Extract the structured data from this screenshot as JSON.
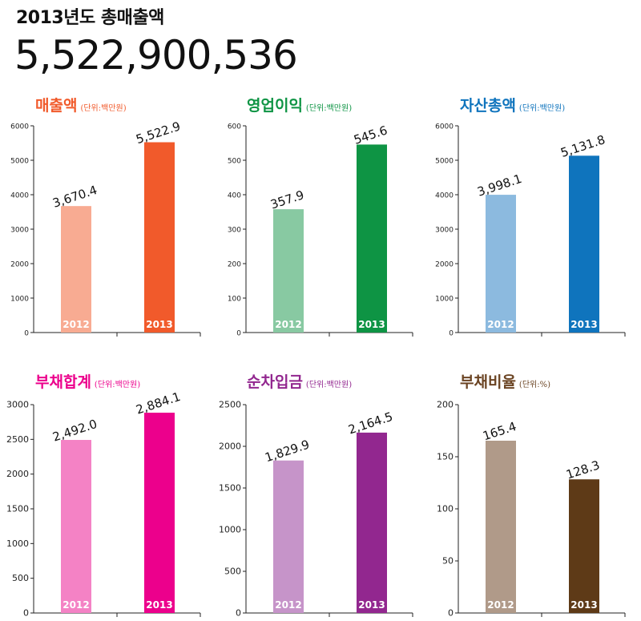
{
  "header": {
    "title": "2013년도 총매출액",
    "total": "5,522,900,536"
  },
  "chart_data": [
    {
      "type": "bar",
      "title": "매출액",
      "unit": "(단위:백만원)",
      "categories": [
        "2012",
        "2013"
      ],
      "values": [
        3670.4,
        5522.9
      ],
      "value_labels": [
        "3,670.4",
        "5,522.9"
      ],
      "ylim": [
        0,
        6000
      ],
      "yticks": [
        0,
        1000,
        2000,
        3000,
        4000,
        5000,
        6000
      ],
      "colors": [
        "#f8ab92",
        "#f15a2b"
      ],
      "title_color": "#f15a2b"
    },
    {
      "type": "bar",
      "title": "영업이익",
      "unit": "(단위:백만원)",
      "categories": [
        "2012",
        "2013"
      ],
      "values": [
        357.9,
        545.6
      ],
      "value_labels": [
        "357.9",
        "545.6"
      ],
      "ylim": [
        0,
        600
      ],
      "yticks": [
        0,
        100,
        200,
        300,
        400,
        500,
        600
      ],
      "colors": [
        "#88c9a2",
        "#0e9444"
      ],
      "title_color": "#0e9444"
    },
    {
      "type": "bar",
      "title": "자산총액",
      "unit": "(단위:백만원)",
      "categories": [
        "2012",
        "2013"
      ],
      "values": [
        3998.1,
        5131.8
      ],
      "value_labels": [
        "3,998.1",
        "5,131.8"
      ],
      "ylim": [
        0,
        6000
      ],
      "yticks": [
        0,
        1000,
        2000,
        3000,
        4000,
        5000,
        6000
      ],
      "colors": [
        "#8cbadf",
        "#0f74bd"
      ],
      "title_color": "#0f74bd"
    },
    {
      "type": "bar",
      "title": "부채합계",
      "unit": "(단위:백만원)",
      "categories": [
        "2012",
        "2013"
      ],
      "values": [
        2492.0,
        2884.1
      ],
      "value_labels": [
        "2,492.0",
        "2,884.1"
      ],
      "ylim": [
        0,
        3000
      ],
      "yticks": [
        0,
        500,
        1000,
        1500,
        2000,
        2500,
        3000
      ],
      "colors": [
        "#f482c5",
        "#ec008c"
      ],
      "title_color": "#ec008c"
    },
    {
      "type": "bar",
      "title": "순차입금",
      "unit": "(단위:백만원)",
      "categories": [
        "2012",
        "2013"
      ],
      "values": [
        1829.9,
        2164.5
      ],
      "value_labels": [
        "1,829.9",
        "2,164.5"
      ],
      "ylim": [
        0,
        2500
      ],
      "yticks": [
        0,
        500,
        1000,
        1500,
        2000,
        2500
      ],
      "colors": [
        "#c694c9",
        "#92278f"
      ],
      "title_color": "#92278f"
    },
    {
      "type": "bar",
      "title": "부채비율",
      "unit": "(단위:%)",
      "categories": [
        "2012",
        "2013"
      ],
      "values": [
        165.4,
        128.3
      ],
      "value_labels": [
        "165.4",
        "128.3"
      ],
      "ylim": [
        0,
        200
      ],
      "yticks": [
        0,
        50,
        100,
        150,
        200
      ],
      "colors": [
        "#b09a89",
        "#5e3a17"
      ],
      "title_color": "#6b4423"
    }
  ]
}
